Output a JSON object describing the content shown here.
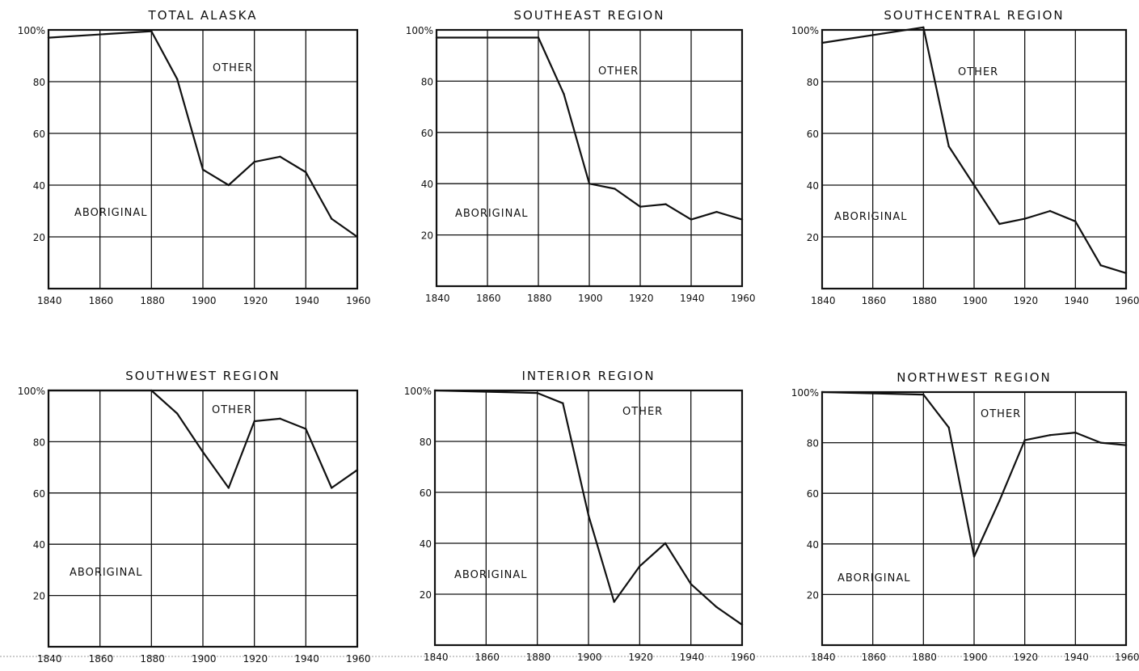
{
  "chart_data": [
    {
      "type": "line",
      "title": "TOTAL ALASKA",
      "xlim": [
        1840,
        1960
      ],
      "ylim": [
        0,
        100
      ],
      "x_ticks": [
        "1840",
        "1860",
        "1880",
        "1900",
        "1920",
        "1940",
        "1960"
      ],
      "y_ticks": [
        "100%",
        "80",
        "60",
        "40",
        "20"
      ],
      "upper_label": "OTHER",
      "lower_label": "ABORIGINAL",
      "x": [
        1840,
        1880,
        1890,
        1900,
        1910,
        1920,
        1930,
        1940,
        1950,
        1960
      ],
      "values": [
        97,
        99.5,
        81,
        46,
        40,
        49,
        51,
        45,
        27,
        20
      ]
    },
    {
      "type": "line",
      "title": "SOUTHEAST REGION",
      "xlim": [
        1840,
        1960
      ],
      "ylim": [
        0,
        100
      ],
      "x_ticks": [
        "1840",
        "1860",
        "1880",
        "1900",
        "1920",
        "1940",
        "1960"
      ],
      "y_ticks": [
        "100%",
        "80",
        "60",
        "40",
        "20"
      ],
      "upper_label": "OTHER",
      "lower_label": "ABORIGINAL",
      "x": [
        1840,
        1880,
        1890,
        1900,
        1910,
        1920,
        1930,
        1940,
        1950,
        1960
      ],
      "values": [
        97,
        97,
        75,
        40,
        38,
        31,
        32,
        26,
        29,
        26
      ]
    },
    {
      "type": "line",
      "title": "SOUTHCENTRAL REGION",
      "xlim": [
        1840,
        1960
      ],
      "ylim": [
        0,
        100
      ],
      "x_ticks": [
        "1840",
        "1860",
        "1880",
        "1900",
        "1920",
        "1940",
        "1960"
      ],
      "y_ticks": [
        "100%",
        "80",
        "60",
        "40",
        "20"
      ],
      "upper_label": "OTHER",
      "lower_label": "ABORIGINAL",
      "x": [
        1840,
        1880,
        1890,
        1900,
        1910,
        1920,
        1930,
        1940,
        1950,
        1960
      ],
      "values": [
        95,
        101,
        55,
        40,
        25,
        27,
        30,
        26,
        9,
        6
      ]
    },
    {
      "type": "line",
      "title": "SOUTHWEST REGION",
      "xlim": [
        1840,
        1960
      ],
      "ylim": [
        0,
        100
      ],
      "x_ticks": [
        "1840",
        "1860",
        "1880",
        "1900",
        "1920",
        "1940",
        "1960"
      ],
      "y_ticks": [
        "100%",
        "80",
        "60",
        "40",
        "20"
      ],
      "upper_label": "OTHER",
      "lower_label": "ABORIGINAL",
      "x": [
        1840,
        1880,
        1890,
        1900,
        1910,
        1920,
        1930,
        1940,
        1950,
        1960
      ],
      "values": [
        100,
        100,
        91,
        76,
        62,
        88,
        89,
        85,
        62,
        69
      ]
    },
    {
      "type": "line",
      "title": "INTERIOR REGION",
      "xlim": [
        1840,
        1960
      ],
      "ylim": [
        0,
        100
      ],
      "x_ticks": [
        "1840",
        "1860",
        "1880",
        "1900",
        "1920",
        "1940",
        "1960"
      ],
      "y_ticks": [
        "100%",
        "80",
        "60",
        "40",
        "20"
      ],
      "upper_label": "OTHER",
      "lower_label": "ABORIGINAL",
      "x": [
        1840,
        1880,
        1890,
        1900,
        1910,
        1920,
        1930,
        1940,
        1950,
        1960
      ],
      "values": [
        100,
        99,
        95,
        51,
        17,
        31,
        40,
        24,
        15,
        8
      ]
    },
    {
      "type": "line",
      "title": "NORTHWEST REGION",
      "xlim": [
        1840,
        1960
      ],
      "ylim": [
        0,
        100
      ],
      "x_ticks": [
        "1840",
        "1860",
        "1880",
        "1900",
        "1920",
        "1940",
        "1960"
      ],
      "y_ticks": [
        "100%",
        "80",
        "60",
        "40",
        "20"
      ],
      "upper_label": "OTHER",
      "lower_label": "ABORIGINAL",
      "x": [
        1840,
        1880,
        1890,
        1900,
        1910,
        1920,
        1930,
        1940,
        1950,
        1960
      ],
      "values": [
        100,
        99,
        86,
        35,
        57,
        81,
        83,
        84,
        80,
        79
      ]
    }
  ]
}
